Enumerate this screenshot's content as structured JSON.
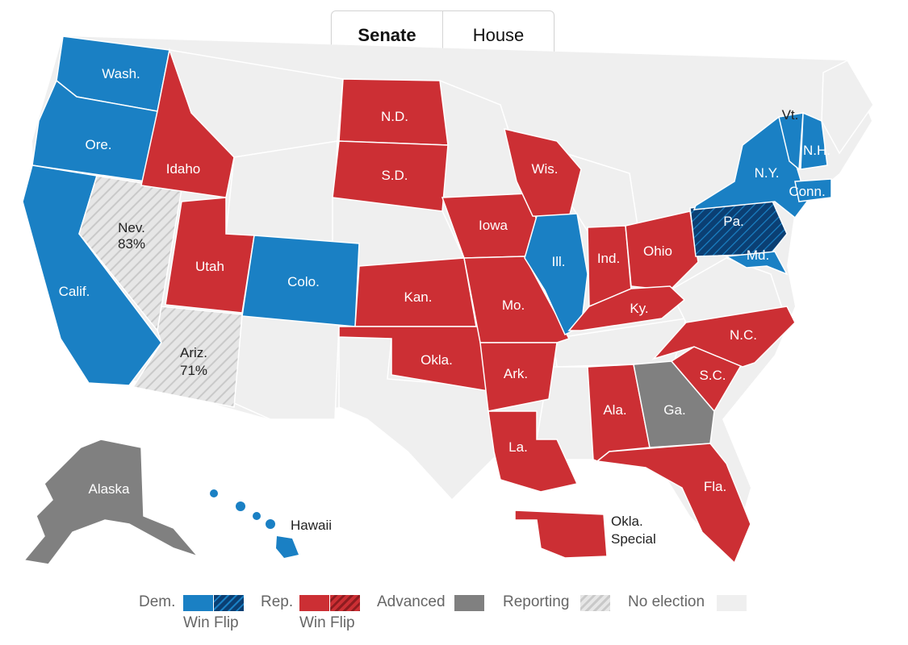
{
  "tabs": [
    {
      "label": "Senate",
      "active": true
    },
    {
      "label": "House",
      "active": false
    }
  ],
  "colors": {
    "dem": "#1a80c4",
    "dem_flip": "#0b3f73",
    "rep": "#cc2f34",
    "rep_flip": "#8e1c20",
    "advanced": "#808080",
    "reporting": "#d9d9d9",
    "no_election": "#efefef",
    "border": "#ffffff"
  },
  "states": [
    {
      "label": "Wash.",
      "status": "dem"
    },
    {
      "label": "Ore.",
      "status": "dem"
    },
    {
      "label": "Calif.",
      "status": "dem"
    },
    {
      "label": "Nev.",
      "pct": "83%",
      "status": "reporting"
    },
    {
      "label": "Ariz.",
      "pct": "71%",
      "status": "reporting"
    },
    {
      "label": "Idaho",
      "status": "rep"
    },
    {
      "label": "Utah",
      "status": "rep"
    },
    {
      "label": "Colo.",
      "status": "dem"
    },
    {
      "label": "N.D.",
      "status": "rep"
    },
    {
      "label": "S.D.",
      "status": "rep"
    },
    {
      "label": "Kan.",
      "status": "rep"
    },
    {
      "label": "Okla.",
      "status": "rep"
    },
    {
      "label": "Iowa",
      "status": "rep"
    },
    {
      "label": "Mo.",
      "status": "rep"
    },
    {
      "label": "Ark.",
      "status": "rep"
    },
    {
      "label": "La.",
      "status": "rep"
    },
    {
      "label": "Wis.",
      "status": "rep"
    },
    {
      "label": "Ill.",
      "status": "dem"
    },
    {
      "label": "Ind.",
      "status": "rep"
    },
    {
      "label": "Ohio",
      "status": "rep"
    },
    {
      "label": "Ky.",
      "status": "rep"
    },
    {
      "label": "Ala.",
      "status": "rep"
    },
    {
      "label": "Ga.",
      "status": "advanced"
    },
    {
      "label": "Fla.",
      "status": "rep"
    },
    {
      "label": "S.C.",
      "status": "rep"
    },
    {
      "label": "N.C.",
      "status": "rep"
    },
    {
      "label": "Pa.",
      "status": "dem_flip"
    },
    {
      "label": "N.Y.",
      "status": "dem"
    },
    {
      "label": "Md.",
      "status": "dem"
    },
    {
      "label": "Conn.",
      "status": "dem"
    },
    {
      "label": "N.H.",
      "status": "dem"
    },
    {
      "label": "Vt.",
      "status": "dem"
    },
    {
      "label": "Alaska",
      "status": "advanced"
    },
    {
      "label": "Hawaii",
      "status": "dem"
    },
    {
      "label": "Okla. Special",
      "status": "rep"
    }
  ],
  "legend": {
    "dem": "Dem.",
    "rep": "Rep.",
    "win": "Win",
    "flip": "Flip",
    "advanced": "Advanced",
    "reporting": "Reporting",
    "no_election": "No election"
  }
}
